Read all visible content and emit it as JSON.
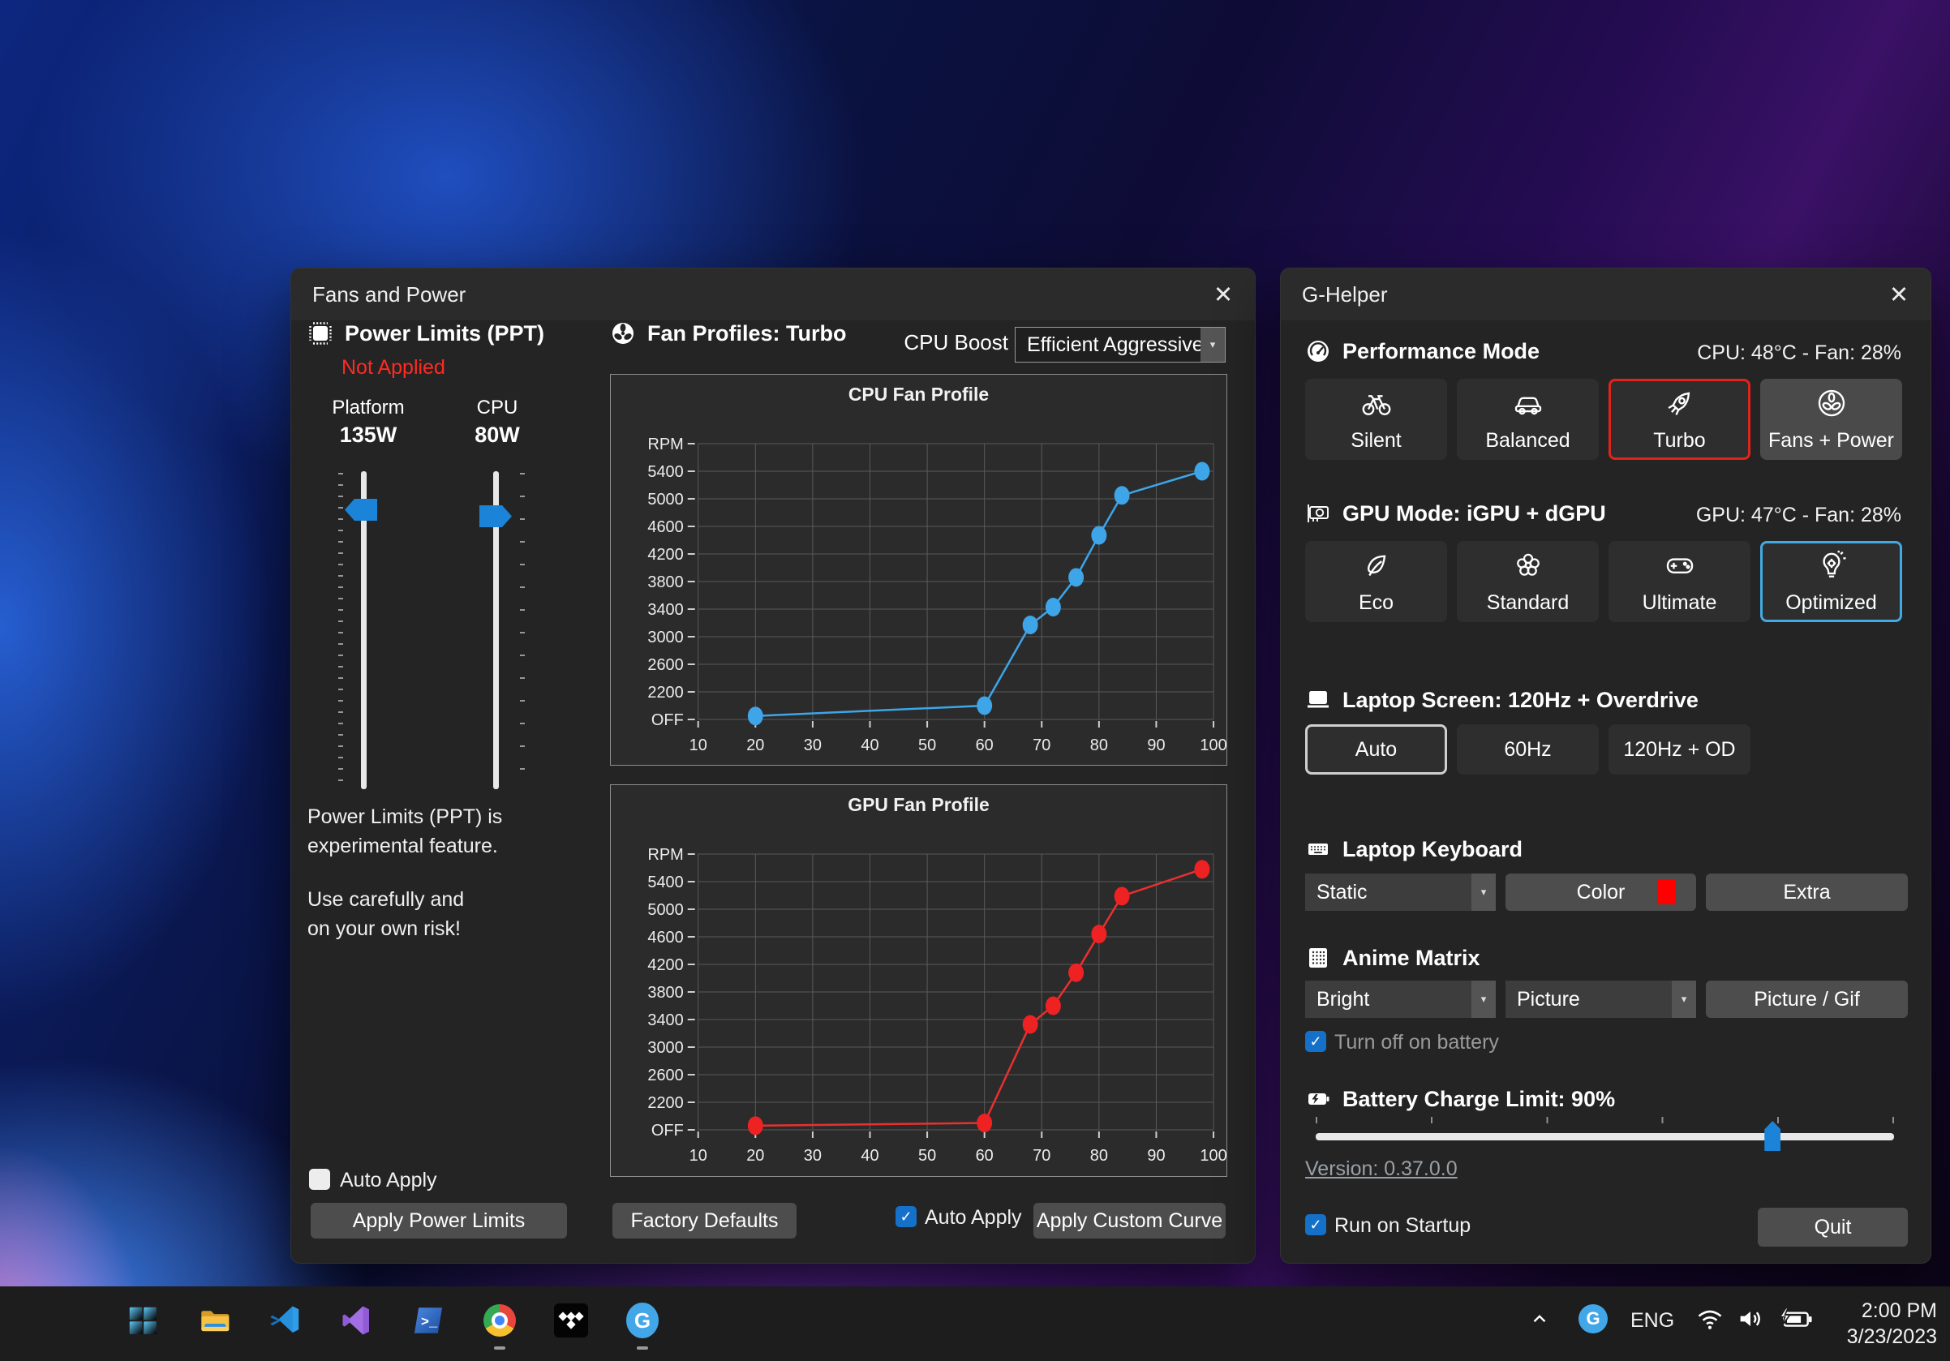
{
  "ui": {
    "close_glyph": "✕",
    "dropdown_arrow": "▾",
    "check_glyph": "✓",
    "terminal_glyph": ">_",
    "g_glyph": "G"
  },
  "fans_window": {
    "title": "Fans and Power",
    "power_limits": {
      "header": "Power Limits (PPT)",
      "status": "Not Applied",
      "platform_label": "Platform",
      "platform_value": "135W",
      "cpu_label": "CPU",
      "cpu_value": "80W",
      "note1": "Power Limits (PPT) is\nexperimental feature.",
      "note2": "Use carefully and\non your own risk!",
      "auto_apply_label": "Auto Apply",
      "auto_apply_checked": false,
      "apply_button": "Apply Power Limits"
    },
    "fan_profiles": {
      "header": "Fan Profiles: Turbo",
      "cpu_boost_label": "CPU Boost",
      "cpu_boost_value": "Efficient Aggressive",
      "factory_defaults_button": "Factory Defaults",
      "auto_apply_label": "Auto Apply",
      "auto_apply_checked": true,
      "apply_custom_curve_button": "Apply Custom Curve"
    }
  },
  "chart_data": [
    {
      "type": "line",
      "title": "CPU Fan Profile",
      "color": "#3da5e8",
      "point_color": "#3da5e8",
      "x_axis": {
        "ticks": [
          10,
          20,
          30,
          40,
          50,
          60,
          70,
          80,
          90,
          100
        ]
      },
      "y_axis": {
        "row_labels": [
          "RPM",
          "5400",
          "5000",
          "4600",
          "4200",
          "3800",
          "3400",
          "3000",
          "2600",
          "2200",
          "OFF"
        ],
        "baseline_value": 1800,
        "step": 400
      },
      "points": [
        [
          20,
          1850
        ],
        [
          60,
          2000
        ],
        [
          68,
          3170
        ],
        [
          72,
          3430
        ],
        [
          76,
          3860
        ],
        [
          80,
          4470
        ],
        [
          84,
          5050
        ],
        [
          98,
          5400
        ]
      ],
      "grid": true,
      "legend": "none"
    },
    {
      "type": "line",
      "title": "GPU Fan Profile",
      "color": "#e93030",
      "point_color": "#ee2222",
      "x_axis": {
        "ticks": [
          10,
          20,
          30,
          40,
          50,
          60,
          70,
          80,
          90,
          100
        ]
      },
      "y_axis": {
        "row_labels": [
          "RPM",
          "5400",
          "5000",
          "4600",
          "4200",
          "3800",
          "3400",
          "3000",
          "2600",
          "2200",
          "OFF"
        ],
        "baseline_value": 1800,
        "step": 400
      },
      "points": [
        [
          20,
          1860
        ],
        [
          60,
          1900
        ],
        [
          68,
          3330
        ],
        [
          72,
          3600
        ],
        [
          76,
          4080
        ],
        [
          80,
          4640
        ],
        [
          84,
          5190
        ],
        [
          98,
          5580
        ]
      ],
      "grid": true,
      "legend": "none"
    }
  ],
  "g_helper": {
    "title": "G-Helper",
    "performance": {
      "header": "Performance Mode",
      "status": "CPU: 48°C -  Fan: 28%",
      "buttons": [
        {
          "label": "Silent",
          "icon": "bicycle-icon"
        },
        {
          "label": "Balanced",
          "icon": "car-icon"
        },
        {
          "label": "Turbo",
          "icon": "rocket-icon",
          "state": "selected-red"
        },
        {
          "label": "Fans + Power",
          "icon": "fan-circle-icon",
          "state": "highlighted"
        }
      ]
    },
    "gpu": {
      "header": "GPU Mode: iGPU + dGPU",
      "status": "GPU: 47°C -  Fan: 28%",
      "buttons": [
        {
          "label": "Eco",
          "icon": "leaf-icon"
        },
        {
          "label": "Standard",
          "icon": "flower-icon"
        },
        {
          "label": "Ultimate",
          "icon": "gamepad-icon"
        },
        {
          "label": "Optimized",
          "icon": "lightbulb-gear-icon",
          "state": "selected-blue"
        }
      ]
    },
    "screen": {
      "header": "Laptop Screen: 120Hz + Overdrive",
      "buttons": [
        {
          "label": "Auto",
          "state": "selected-white"
        },
        {
          "label": "60Hz"
        },
        {
          "label": "120Hz + OD"
        }
      ]
    },
    "keyboard": {
      "header": "Laptop Keyboard",
      "mode_value": "Static",
      "color_button": "Color",
      "color_swatch": "#ff0000",
      "extra_button": "Extra"
    },
    "matrix": {
      "header": "Anime Matrix",
      "brightness_value": "Bright",
      "running_value": "Picture",
      "picture_gif_button": "Picture / Gif",
      "battery_checkbox_label": "Turn off on battery",
      "battery_checkbox_checked": true
    },
    "battery": {
      "header": "Battery Charge Limit: 90%",
      "slider_percent": 79,
      "version_link": "Version: 0.37.0.0"
    },
    "footer": {
      "startup_checkbox_label": "Run on Startup",
      "startup_checked": true,
      "quit_button": "Quit"
    }
  },
  "taskbar": {
    "apps": [
      "start",
      "file-explorer",
      "vscode",
      "visual-studio",
      "terminal",
      "chrome",
      "tidal",
      "g-helper"
    ],
    "running_apps": [
      "chrome",
      "g-helper"
    ],
    "tray": {
      "language": "ENG",
      "time": "2:00 PM",
      "date": "3/23/2023"
    }
  }
}
